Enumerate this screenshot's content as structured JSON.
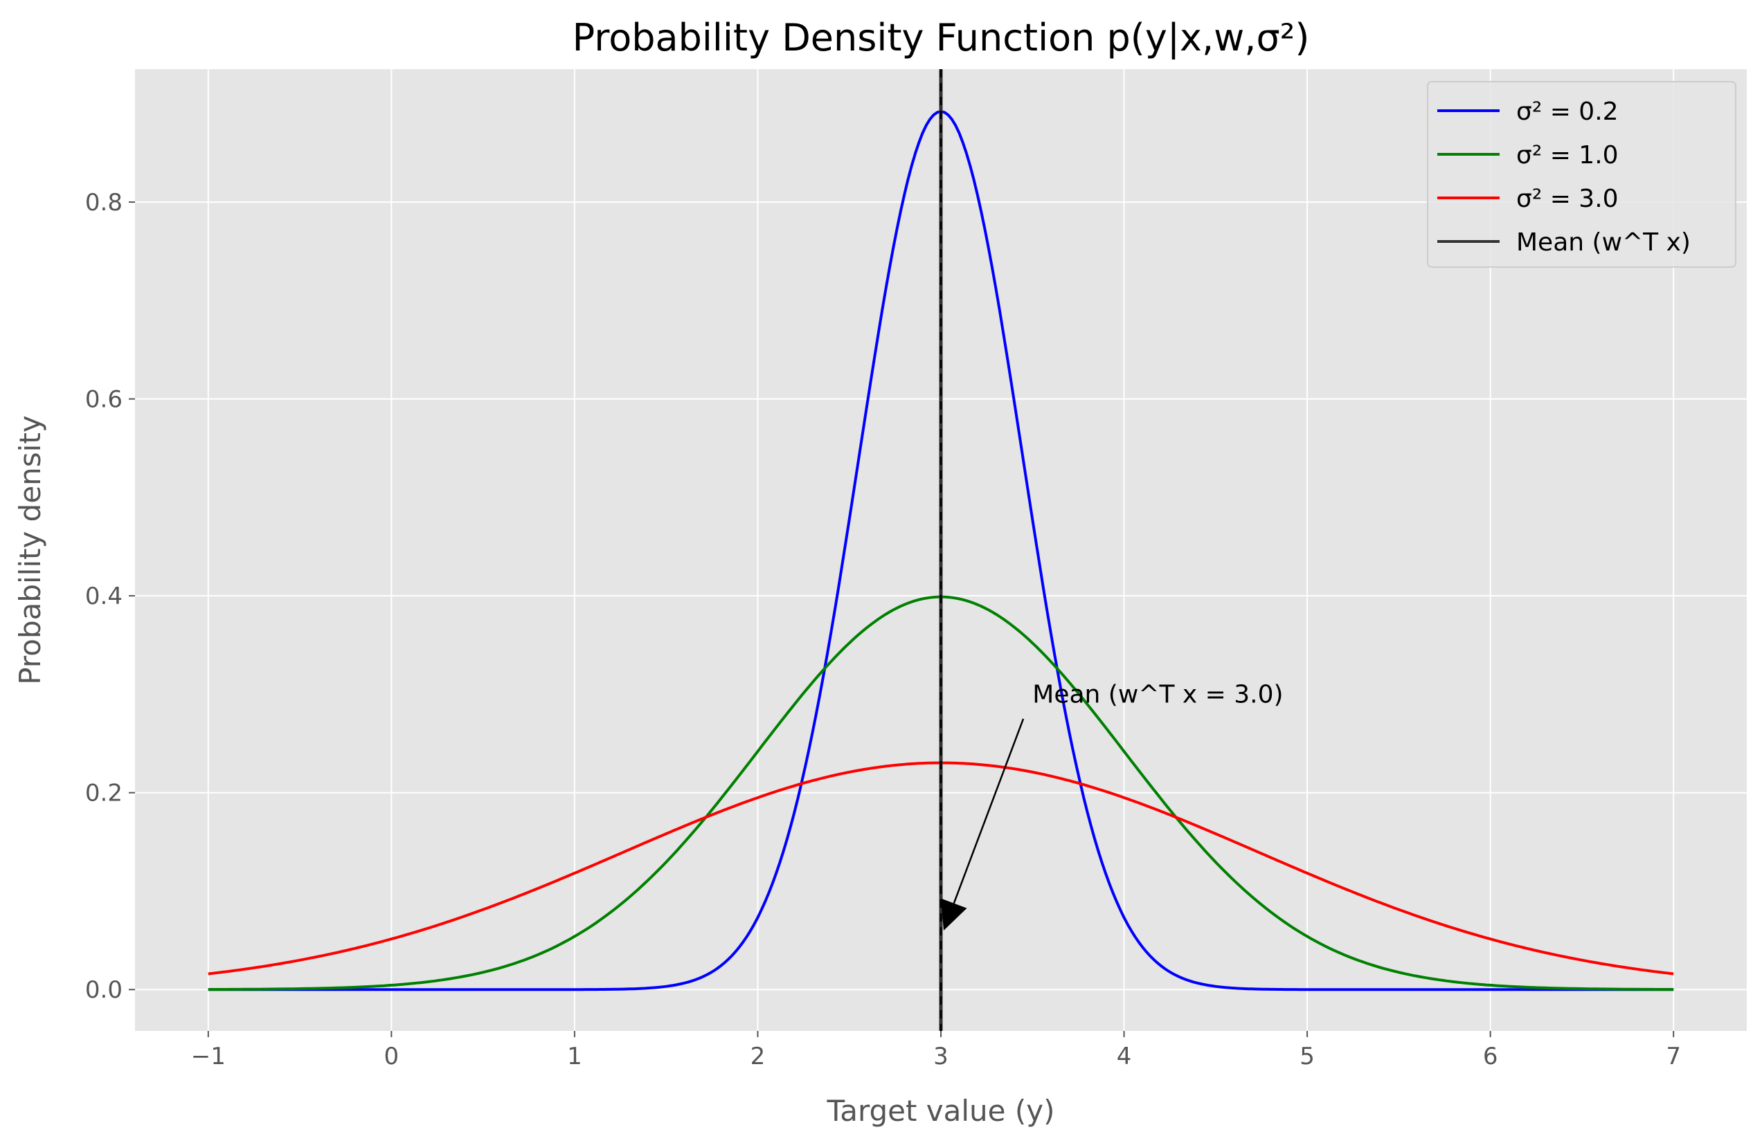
{
  "chart_data": {
    "type": "line",
    "title": "Probability Density Function p(y|x,w,σ²)",
    "xlabel": "Target value (y)",
    "ylabel": "Probability density",
    "xlim": [
      -1.4,
      7.4
    ],
    "ylim": [
      -0.042,
      0.935
    ],
    "x_ticks": [
      -1,
      0,
      1,
      2,
      3,
      4,
      5,
      6,
      7
    ],
    "x_tick_labels": [
      "−1",
      "0",
      "1",
      "2",
      "3",
      "4",
      "5",
      "6",
      "7"
    ],
    "y_ticks": [
      0.0,
      0.2,
      0.4,
      0.6,
      0.8
    ],
    "y_tick_labels": [
      "0.0",
      "0.2",
      "0.4",
      "0.6",
      "0.8"
    ],
    "grid": true,
    "background": "#e5e5e5",
    "legend_position": "top-right",
    "mean": 3.0,
    "x_range": [
      -1,
      7
    ],
    "series": [
      {
        "name": "σ² = 0.2",
        "variance": 0.2,
        "distribution": "normal",
        "peak": 0.892,
        "color": "#0000ff"
      },
      {
        "name": "σ² = 1.0",
        "variance": 1.0,
        "distribution": "normal",
        "peak": 0.399,
        "color": "#008000"
      },
      {
        "name": "σ² = 3.0",
        "variance": 3.0,
        "distribution": "normal",
        "peak": 0.23,
        "color": "#ff0000"
      }
    ],
    "mean_line": {
      "name": "Mean (w^T x)",
      "x": 3.0,
      "color": "#333333"
    },
    "annotation": {
      "text": "Mean (w^T x = 3.0)",
      "text_x": 3.5,
      "text_y": 0.3,
      "arrow_to_x": 3.0,
      "arrow_to_y": 0.06
    }
  }
}
